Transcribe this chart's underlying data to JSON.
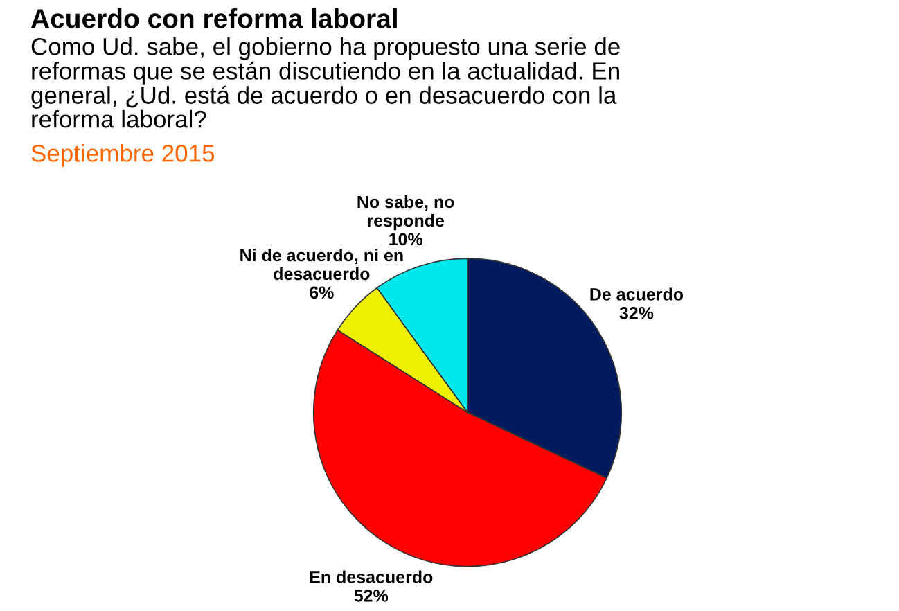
{
  "chart_data": {
    "type": "pie",
    "title": "Acuerdo con reforma laboral",
    "subtitle": "Como Ud. sabe, el gobierno ha propuesto una serie de reformas que se están discutiendo en la actualidad. En general, ¿Ud. está de acuerdo o en desacuerdo con la reforma laboral?",
    "annotations": [
      "Septiembre 2015"
    ],
    "categories": [
      "De acuerdo",
      "En desacuerdo",
      "Ni de acuerdo, ni en desacuerdo",
      "No sabe, no responde"
    ],
    "values": [
      32,
      52,
      6,
      10
    ],
    "value_labels": [
      "32%",
      "52%",
      "6%",
      "10%"
    ],
    "colors": [
      "#001b5e",
      "#ff0000",
      "#eef000",
      "#00e8ec"
    ],
    "legend": false
  }
}
